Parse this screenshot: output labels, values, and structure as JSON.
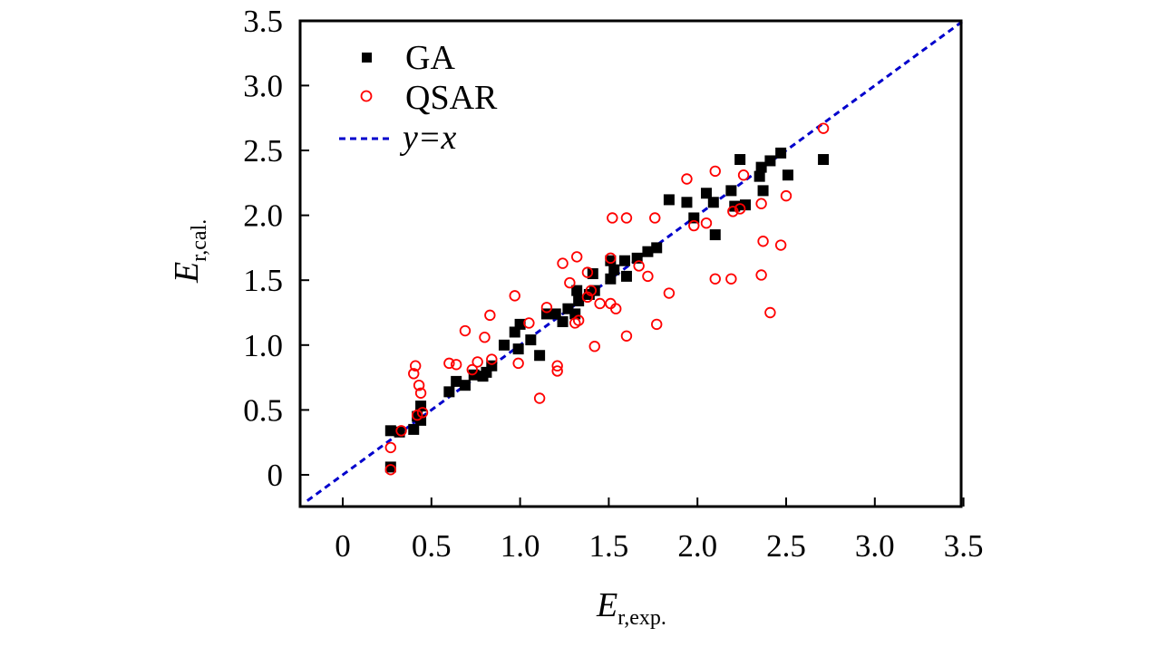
{
  "chart_data": {
    "type": "scatter",
    "title": "",
    "xlabel": {
      "main": "E",
      "sub": "r,exp."
    },
    "ylabel": {
      "main": "E",
      "sub": "r,cal."
    },
    "xlim": [
      -0.25,
      3.5
    ],
    "ylim": [
      -0.25,
      3.5
    ],
    "xticks": [
      {
        "value": 0,
        "label": "0"
      },
      {
        "value": 0.5,
        "label": "0.5"
      },
      {
        "value": 1.0,
        "label": "1.0"
      },
      {
        "value": 1.5,
        "label": "1.5"
      },
      {
        "value": 2.0,
        "label": "2.0"
      },
      {
        "value": 2.5,
        "label": "2.5"
      },
      {
        "value": 3.0,
        "label": "3.0"
      },
      {
        "value": 3.5,
        "label": "3.5"
      }
    ],
    "yticks": [
      {
        "value": 0,
        "label": "0"
      },
      {
        "value": 0.5,
        "label": "0.5"
      },
      {
        "value": 1.0,
        "label": "1.0"
      },
      {
        "value": 1.5,
        "label": "1.5"
      },
      {
        "value": 2.0,
        "label": "2.0"
      },
      {
        "value": 2.5,
        "label": "2.5"
      },
      {
        "value": 3.0,
        "label": "3.0"
      },
      {
        "value": 3.5,
        "label": "3.5"
      }
    ],
    "grid": false,
    "legend_position": "top-left",
    "series": [
      {
        "name": "GA",
        "marker": "filled-square",
        "color": "#000000",
        "points": [
          [
            0.27,
            0.06
          ],
          [
            0.27,
            0.34
          ],
          [
            0.32,
            0.33
          ],
          [
            0.4,
            0.35
          ],
          [
            0.42,
            0.45
          ],
          [
            0.44,
            0.42
          ],
          [
            0.44,
            0.53
          ],
          [
            0.6,
            0.64
          ],
          [
            0.64,
            0.72
          ],
          [
            0.69,
            0.69
          ],
          [
            0.74,
            0.77
          ],
          [
            0.79,
            0.76
          ],
          [
            0.81,
            0.79
          ],
          [
            0.84,
            0.84
          ],
          [
            0.91,
            1.0
          ],
          [
            0.97,
            1.1
          ],
          [
            0.99,
            0.97
          ],
          [
            1.0,
            1.16
          ],
          [
            1.06,
            1.04
          ],
          [
            1.11,
            0.92
          ],
          [
            1.15,
            1.24
          ],
          [
            1.2,
            1.24
          ],
          [
            1.24,
            1.18
          ],
          [
            1.27,
            1.28
          ],
          [
            1.31,
            1.24
          ],
          [
            1.32,
            1.42
          ],
          [
            1.33,
            1.34
          ],
          [
            1.39,
            1.39
          ],
          [
            1.41,
            1.55
          ],
          [
            1.42,
            1.42
          ],
          [
            1.51,
            1.51
          ],
          [
            1.51,
            1.65
          ],
          [
            1.53,
            1.58
          ],
          [
            1.59,
            1.65
          ],
          [
            1.6,
            1.53
          ],
          [
            1.66,
            1.67
          ],
          [
            1.72,
            1.72
          ],
          [
            1.77,
            1.75
          ],
          [
            1.84,
            2.12
          ],
          [
            1.94,
            2.1
          ],
          [
            1.98,
            1.98
          ],
          [
            2.05,
            2.17
          ],
          [
            2.09,
            2.1
          ],
          [
            2.1,
            1.85
          ],
          [
            2.19,
            2.19
          ],
          [
            2.21,
            2.07
          ],
          [
            2.24,
            2.43
          ],
          [
            2.27,
            2.08
          ],
          [
            2.35,
            2.3
          ],
          [
            2.36,
            2.37
          ],
          [
            2.37,
            2.19
          ],
          [
            2.41,
            2.42
          ],
          [
            2.47,
            2.48
          ],
          [
            2.51,
            2.31
          ],
          [
            2.71,
            2.43
          ]
        ]
      },
      {
        "name": "QSAR",
        "marker": "open-circle",
        "color": "#ff0000",
        "points": [
          [
            0.27,
            0.04
          ],
          [
            0.27,
            0.21
          ],
          [
            0.33,
            0.34
          ],
          [
            0.4,
            0.78
          ],
          [
            0.41,
            0.84
          ],
          [
            0.42,
            0.46
          ],
          [
            0.43,
            0.69
          ],
          [
            0.44,
            0.63
          ],
          [
            0.45,
            0.48
          ],
          [
            0.6,
            0.86
          ],
          [
            0.64,
            0.85
          ],
          [
            0.69,
            1.11
          ],
          [
            0.73,
            0.81
          ],
          [
            0.76,
            0.87
          ],
          [
            0.8,
            1.06
          ],
          [
            0.83,
            1.23
          ],
          [
            0.84,
            0.89
          ],
          [
            0.97,
            1.38
          ],
          [
            0.99,
            0.86
          ],
          [
            1.05,
            1.17
          ],
          [
            1.11,
            0.59
          ],
          [
            1.15,
            1.29
          ],
          [
            1.21,
            0.8
          ],
          [
            1.21,
            0.84
          ],
          [
            1.24,
            1.63
          ],
          [
            1.28,
            1.48
          ],
          [
            1.31,
            1.17
          ],
          [
            1.32,
            1.68
          ],
          [
            1.33,
            1.19
          ],
          [
            1.38,
            1.56
          ],
          [
            1.38,
            1.37
          ],
          [
            1.4,
            1.42
          ],
          [
            1.42,
            0.99
          ],
          [
            1.45,
            1.32
          ],
          [
            1.51,
            1.67
          ],
          [
            1.51,
            1.32
          ],
          [
            1.52,
            1.98
          ],
          [
            1.54,
            1.28
          ],
          [
            1.6,
            1.98
          ],
          [
            1.6,
            1.07
          ],
          [
            1.67,
            1.61
          ],
          [
            1.72,
            1.53
          ],
          [
            1.76,
            1.98
          ],
          [
            1.77,
            1.16
          ],
          [
            1.84,
            1.4
          ],
          [
            1.94,
            2.28
          ],
          [
            1.98,
            1.92
          ],
          [
            2.05,
            1.94
          ],
          [
            2.1,
            2.34
          ],
          [
            2.1,
            1.51
          ],
          [
            2.19,
            1.51
          ],
          [
            2.2,
            2.03
          ],
          [
            2.24,
            2.05
          ],
          [
            2.26,
            2.31
          ],
          [
            2.36,
            2.09
          ],
          [
            2.36,
            1.54
          ],
          [
            2.37,
            1.8
          ],
          [
            2.41,
            1.25
          ],
          [
            2.47,
            1.77
          ],
          [
            2.5,
            2.15
          ],
          [
            2.71,
            2.67
          ]
        ]
      },
      {
        "name": "y=x",
        "marker": "dashed-line",
        "color": "#0000cc",
        "line": [
          [
            -0.2,
            -0.2
          ],
          [
            3.5,
            3.5
          ]
        ]
      }
    ]
  },
  "legend": {
    "items": [
      {
        "label": "GA"
      },
      {
        "label": "QSAR"
      },
      {
        "label": "y=x"
      }
    ]
  }
}
